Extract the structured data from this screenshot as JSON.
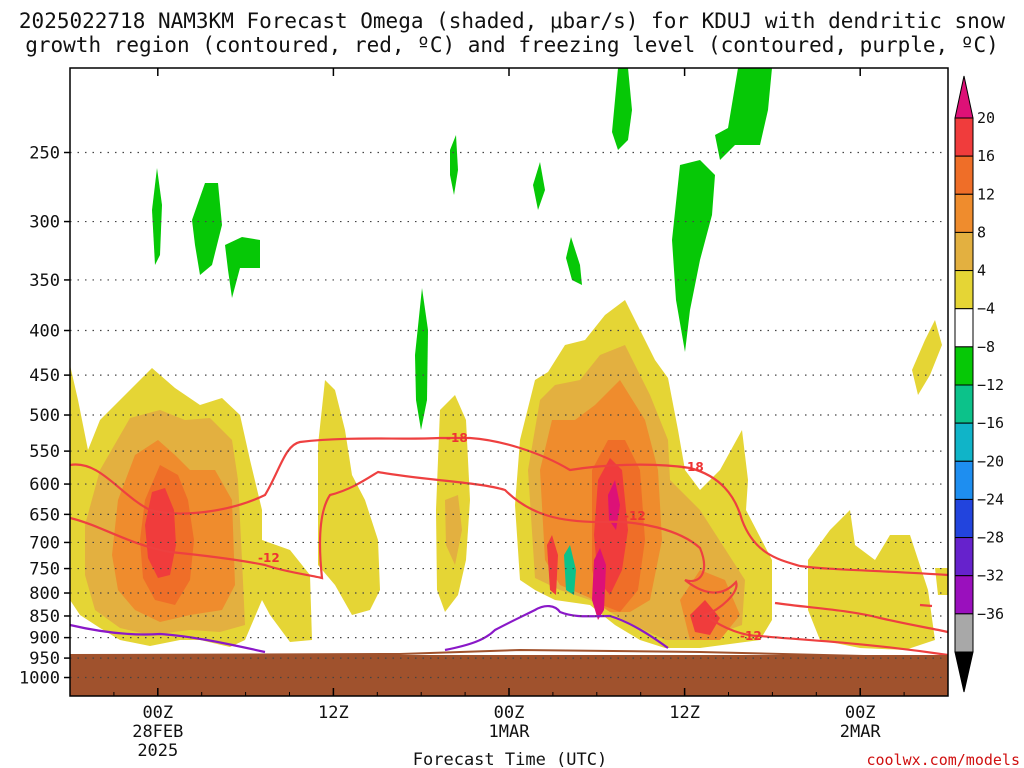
{
  "chart_data": {
    "type": "heatmap",
    "title": "2025022718 NAM3KM Forecast Omega (shaded, μbar/s) for KDUJ with dendritic snow growth region (contoured, red, ºC) and freezing level (contoured, purple, ºC)",
    "title_line1": "2025022718 NAM3KM Forecast Omega (shaded, μbar/s) for KDUJ with dendritic snow",
    "title_line2": "growth region (contoured, red, ºC) and freezing level (contoured, purple, ºC)",
    "xlabel": "Forecast Time (UTC)",
    "ylabel": "",
    "x_ticks": [
      {
        "label": "00Z",
        "sub1": "28FEB",
        "sub2": "2025",
        "hour": 6
      },
      {
        "label": "12Z",
        "sub1": "",
        "sub2": "",
        "hour": 18
      },
      {
        "label": "00Z",
        "sub1": "1MAR",
        "sub2": "",
        "hour": 30
      },
      {
        "label": "12Z",
        "sub1": "",
        "sub2": "",
        "hour": 42
      },
      {
        "label": "00Z",
        "sub1": "2MAR",
        "sub2": "",
        "hour": 54
      }
    ],
    "x_range_hours": [
      0,
      60
    ],
    "y_ticks": [
      250,
      300,
      350,
      400,
      450,
      500,
      550,
      600,
      650,
      700,
      750,
      800,
      850,
      900,
      950,
      1000
    ],
    "y_range_hpa": [
      200,
      1050
    ],
    "y_scale": "log-pressure (inverted)",
    "grid": "dotted horizontal at each pressure level",
    "colorbar": {
      "labels": [
        "20",
        "16",
        "12",
        "8",
        "4",
        "−4",
        "−8",
        "−12",
        "−16",
        "−20",
        "−24",
        "−28",
        "−32",
        "−36"
      ],
      "colors": [
        "#dd1177",
        "#f03c3c",
        "#ef6e28",
        "#ef8c2d",
        "#e3b040",
        "#e5d535",
        "#ffffff",
        "#06c806",
        "#0cc28a",
        "#10b4c8",
        "#1e8ef0",
        "#2244dd",
        "#6622cc",
        "#9a10bd",
        "#a8a8a8",
        "#000000"
      ]
    },
    "dgz_contour_labels": [
      "-18",
      "-12",
      "-18",
      "-12",
      "-12"
    ],
    "credit": "coolwx.com/models"
  }
}
